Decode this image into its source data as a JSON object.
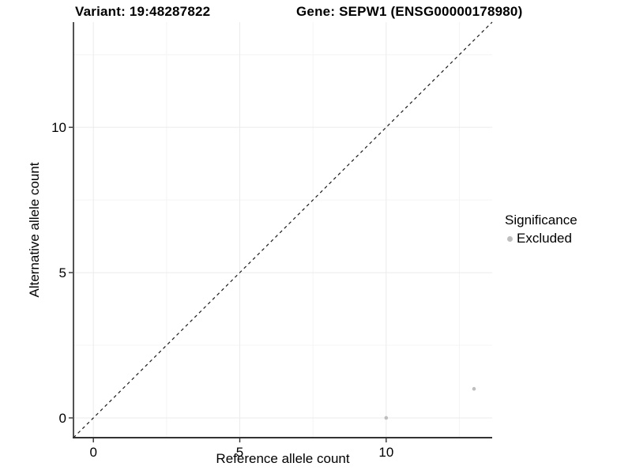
{
  "chart_data": {
    "type": "scatter",
    "titles": {
      "left": "Variant: 19:48287822",
      "right": "Gene: SEPW1 (ENSG00000178980)"
    },
    "xlabel": "Reference allele count",
    "ylabel": "Alternative allele count",
    "xlim": [
      -0.68,
      13.62
    ],
    "ylim": [
      -0.68,
      13.62
    ],
    "xticks": [
      0,
      5,
      10
    ],
    "yticks": [
      0,
      5,
      10
    ],
    "minor_ticks": [
      2.5,
      7.5,
      12.5
    ],
    "grid": true,
    "legend_position": "right",
    "legend": {
      "title": "Significance",
      "entries": [
        {
          "label": "Excluded",
          "color": "#bebebe"
        }
      ]
    },
    "series": [
      {
        "name": "Excluded",
        "color": "#bebebe",
        "points": [
          [
            10,
            0
          ],
          [
            13,
            1
          ]
        ]
      }
    ],
    "reference_line": {
      "type": "identity",
      "style": "dashed",
      "color": "#1a1a1a"
    },
    "colors": {
      "grid_major": "#ebebeb",
      "grid_minor": "#f4f4f4",
      "axis_line": "#333333",
      "tick": "#333333",
      "text": "#000000"
    }
  }
}
